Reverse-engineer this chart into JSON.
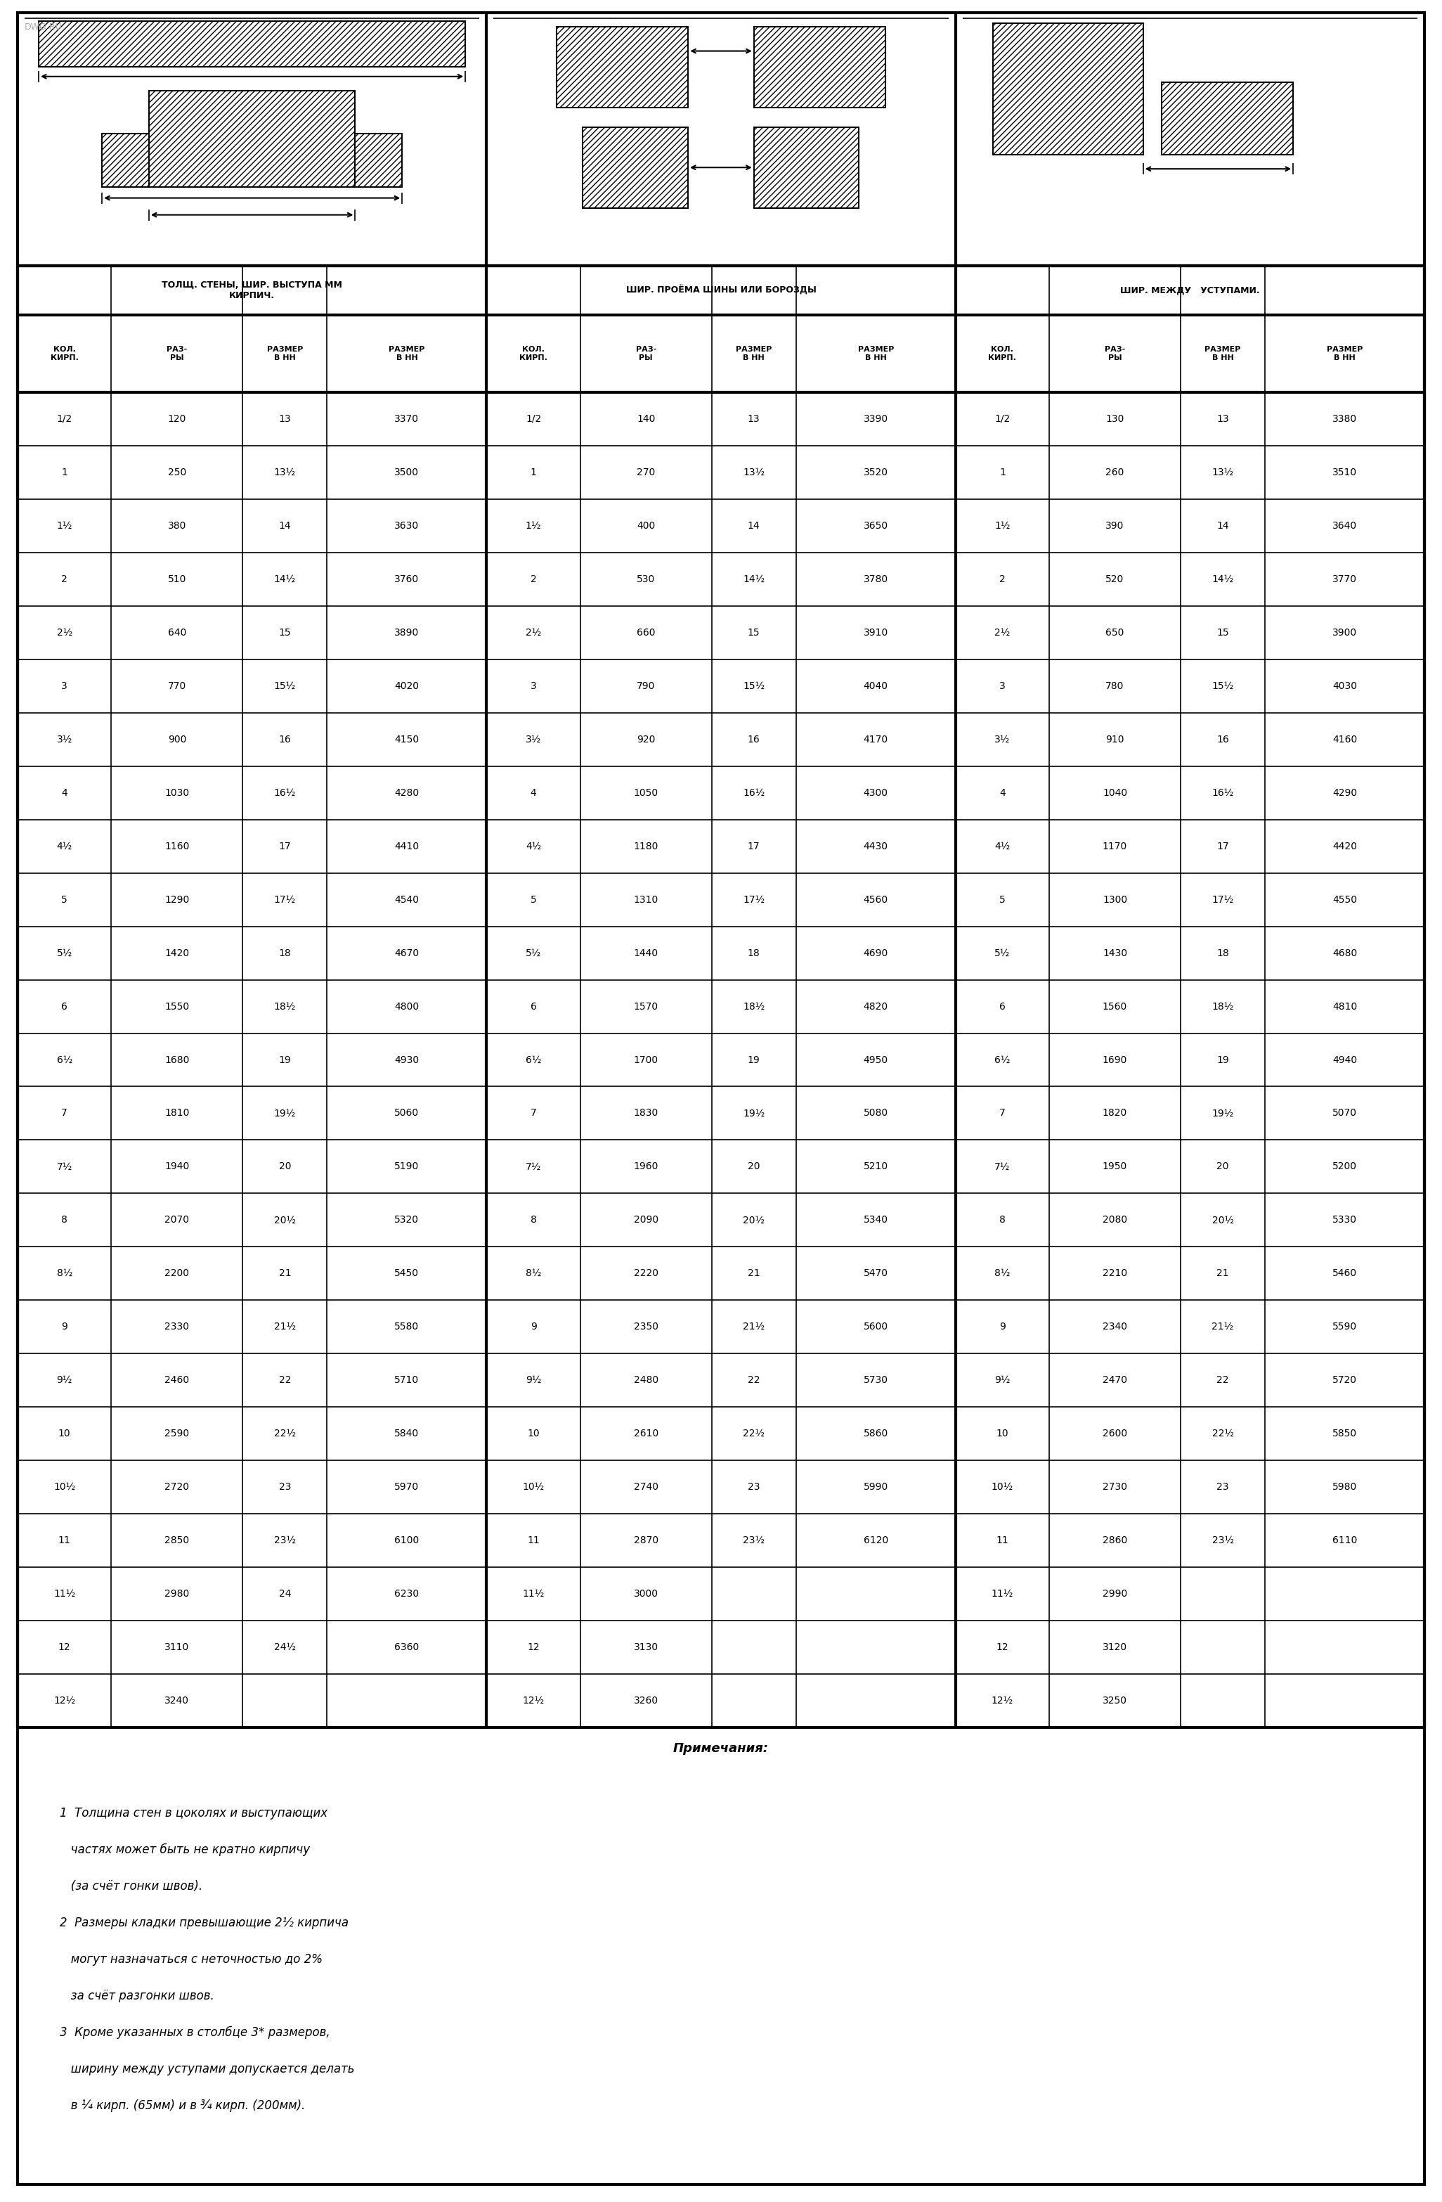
{
  "background_color": "#ffffff",
  "section1_header_line1": "ТОЛЩ. СТЕНЫ, ШИР. ВЫСТУПА ММ",
  "section1_header_line2": "КИРПИЧ.",
  "section2_header": "ШИР. ПРОЁМА ШИНЫ ИЛИ БОРОЗДЫ",
  "section3_header": "ШИР. МЕЖДУ   УСТУПАМИ.",
  "rows": [
    [
      "1/2",
      "120",
      "13",
      "3370",
      "1/2",
      "140",
      "13",
      "3390",
      "1/2",
      "130",
      "13",
      "3380"
    ],
    [
      "1",
      "250",
      "13½",
      "3500",
      "1",
      "270",
      "13½",
      "3520",
      "1",
      "260",
      "13½",
      "3510"
    ],
    [
      "1½",
      "380",
      "14",
      "3630",
      "1½",
      "400",
      "14",
      "3650",
      "1½",
      "390",
      "14",
      "3640"
    ],
    [
      "2",
      "510",
      "14½",
      "3760",
      "2",
      "530",
      "14½",
      "3780",
      "2",
      "520",
      "14½",
      "3770"
    ],
    [
      "2½",
      "640",
      "15",
      "3890",
      "2½",
      "660",
      "15",
      "3910",
      "2½",
      "650",
      "15",
      "3900"
    ],
    [
      "3",
      "770",
      "15½",
      "4020",
      "3",
      "790",
      "15½",
      "4040",
      "3",
      "780",
      "15½",
      "4030"
    ],
    [
      "3½",
      "900",
      "16",
      "4150",
      "3½",
      "920",
      "16",
      "4170",
      "3½",
      "910",
      "16",
      "4160"
    ],
    [
      "4",
      "1030",
      "16½",
      "4280",
      "4",
      "1050",
      "16½",
      "4300",
      "4",
      "1040",
      "16½",
      "4290"
    ],
    [
      "4½",
      "1160",
      "17",
      "4410",
      "4½",
      "1180",
      "17",
      "4430",
      "4½",
      "1170",
      "17",
      "4420"
    ],
    [
      "5",
      "1290",
      "17½",
      "4540",
      "5",
      "1310",
      "17½",
      "4560",
      "5",
      "1300",
      "17½",
      "4550"
    ],
    [
      "5½",
      "1420",
      "18",
      "4670",
      "5½",
      "1440",
      "18",
      "4690",
      "5½",
      "1430",
      "18",
      "4680"
    ],
    [
      "6",
      "1550",
      "18½",
      "4800",
      "6",
      "1570",
      "18½",
      "4820",
      "6",
      "1560",
      "18½",
      "4810"
    ],
    [
      "6½",
      "1680",
      "19",
      "4930",
      "6½",
      "1700",
      "19",
      "4950",
      "6½",
      "1690",
      "19",
      "4940"
    ],
    [
      "7",
      "1810",
      "19½",
      "5060",
      "7",
      "1830",
      "19½",
      "5080",
      "7",
      "1820",
      "19½",
      "5070"
    ],
    [
      "7½",
      "1940",
      "20",
      "5190",
      "7½",
      "1960",
      "20",
      "5210",
      "7½",
      "1950",
      "20",
      "5200"
    ],
    [
      "8",
      "2070",
      "20½",
      "5320",
      "8",
      "2090",
      "20½",
      "5340",
      "8",
      "2080",
      "20½",
      "5330"
    ],
    [
      "8½",
      "2200",
      "21",
      "5450",
      "8½",
      "2220",
      "21",
      "5470",
      "8½",
      "2210",
      "21",
      "5460"
    ],
    [
      "9",
      "2330",
      "21½",
      "5580",
      "9",
      "2350",
      "21½",
      "5600",
      "9",
      "2340",
      "21½",
      "5590"
    ],
    [
      "9½",
      "2460",
      "22",
      "5710",
      "9½",
      "2480",
      "22",
      "5730",
      "9½",
      "2470",
      "22",
      "5720"
    ],
    [
      "10",
      "2590",
      "22½",
      "5840",
      "10",
      "2610",
      "22½",
      "5860",
      "10",
      "2600",
      "22½",
      "5850"
    ],
    [
      "10½",
      "2720",
      "23",
      "5970",
      "10½",
      "2740",
      "23",
      "5990",
      "10½",
      "2730",
      "23",
      "5980"
    ],
    [
      "11",
      "2850",
      "23½",
      "6100",
      "11",
      "2870",
      "23½",
      "6120",
      "11",
      "2860",
      "23½",
      "6110"
    ],
    [
      "11½",
      "2980",
      "24",
      "6230",
      "11½",
      "3000",
      "",
      "",
      "11½",
      "2990",
      "",
      ""
    ],
    [
      "12",
      "3110",
      "24½",
      "6360",
      "12",
      "3130",
      "",
      "",
      "12",
      "3120",
      "",
      ""
    ],
    [
      "12½",
      "3240",
      "",
      "",
      "12½",
      "3260",
      "",
      "",
      "12½",
      "3250",
      "",
      ""
    ]
  ],
  "notes_title": "Примечания:",
  "notes": [
    "1  Толщина стен в цоколях и выступающих",
    "   частях может быть не кратно кирпичу",
    "   (за счёт гонки швов).",
    "2  Размеры кладки превышающие 2½ кирпича",
    "   могут назначаться с неточностью до 2%",
    "   за счёт разгонки швов.",
    "3  Кроме указанных в столбце 3* размеров,",
    "   ширину между уступами допускается делать",
    "   в ¼ кирп. (65мм) и в ¾ кирп. (200мм)."
  ]
}
